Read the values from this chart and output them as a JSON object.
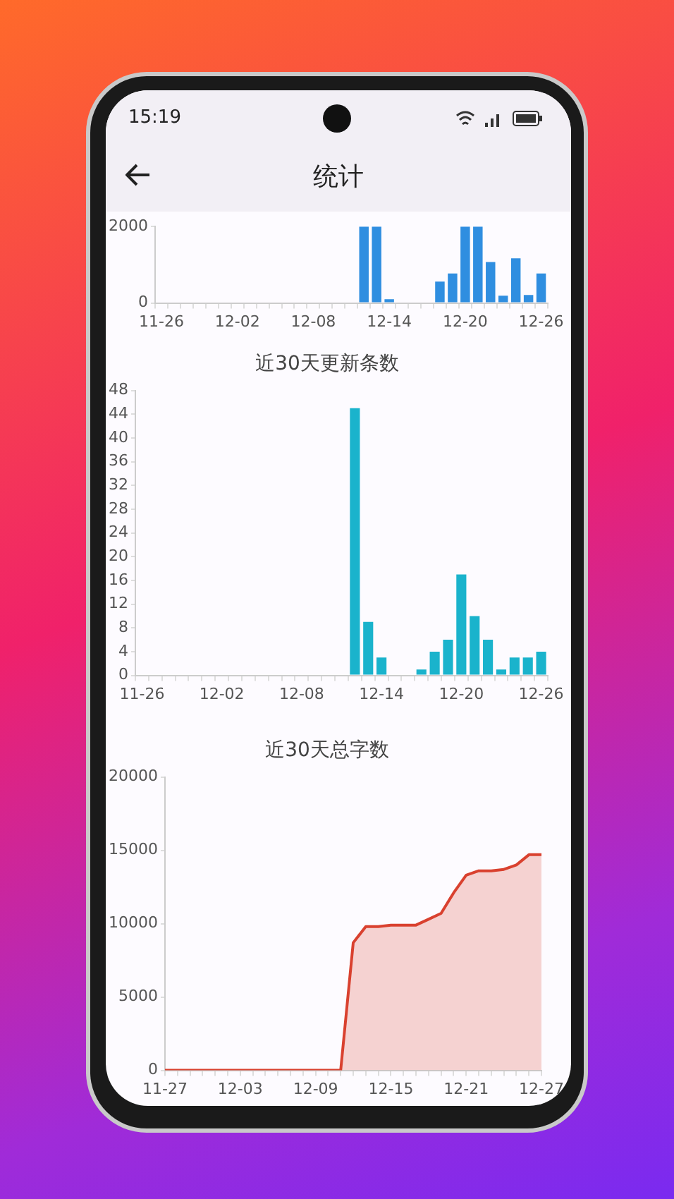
{
  "chart_data": [
    {
      "type": "bar",
      "annotations": [
        "15:19",
        "统计"
      ],
      "categories": [
        "11-26",
        null,
        null,
        null,
        null,
        null,
        "12-02",
        null,
        null,
        null,
        null,
        null,
        "12-08",
        null,
        null,
        null,
        null,
        null,
        "12-14",
        null,
        null,
        null,
        null,
        null,
        "12-20",
        null,
        null,
        null,
        null,
        null,
        "12-26"
      ],
      "values": [
        0,
        0,
        0,
        0,
        0,
        0,
        0,
        0,
        0,
        0,
        0,
        0,
        0,
        0,
        0,
        0,
        2000,
        2000,
        100,
        0,
        0,
        0,
        560,
        770,
        2000,
        2000,
        1070,
        190,
        1170,
        210,
        770
      ],
      "color": "#2f8ee0",
      "ylim": [
        0,
        2000
      ],
      "yticks": [
        0,
        2000
      ],
      "grid": false,
      "legend": false
    },
    {
      "type": "bar",
      "title": "近30天更新条数",
      "categories": [
        "11-26",
        null,
        null,
        null,
        null,
        null,
        "12-02",
        null,
        null,
        null,
        null,
        null,
        "12-08",
        null,
        null,
        null,
        null,
        null,
        "12-14",
        null,
        null,
        null,
        null,
        null,
        "12-20",
        null,
        null,
        null,
        null,
        null,
        "12-26"
      ],
      "values": [
        0,
        0,
        0,
        0,
        0,
        0,
        0,
        0,
        0,
        0,
        0,
        0,
        0,
        0,
        0,
        0,
        45,
        9,
        3,
        0,
        0,
        1,
        4,
        6,
        17,
        10,
        6,
        1,
        3,
        3,
        4
      ],
      "color": "#1ab3cc",
      "ylim": [
        0,
        48
      ],
      "yticks": [
        0,
        4,
        8,
        12,
        16,
        20,
        24,
        28,
        32,
        36,
        40,
        44,
        48
      ],
      "grid": false,
      "legend": false
    },
    {
      "type": "area",
      "title": "近30天总字数",
      "categories": [
        "11-27",
        null,
        null,
        null,
        null,
        null,
        "12-03",
        null,
        null,
        null,
        null,
        null,
        "12-09",
        null,
        null,
        null,
        null,
        null,
        "12-15",
        null,
        null,
        null,
        null,
        null,
        "12-21",
        null,
        null,
        null,
        null,
        null,
        "12-27"
      ],
      "values": [
        0,
        0,
        0,
        0,
        0,
        0,
        0,
        0,
        0,
        0,
        0,
        0,
        0,
        0,
        0,
        8700,
        9800,
        9800,
        9900,
        9900,
        9900,
        10300,
        10700,
        12100,
        13300,
        13600,
        13600,
        13700,
        14000,
        14700,
        14700
      ],
      "color": "#d9412f",
      "ylim": [
        0,
        20000
      ],
      "yticks": [
        0,
        5000,
        10000,
        15000,
        20000
      ],
      "grid": false,
      "legend": false
    }
  ]
}
